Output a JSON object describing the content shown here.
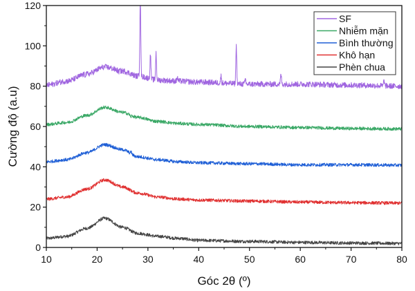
{
  "chart_data": {
    "type": "line",
    "title": "",
    "xlabel": "Góc 2θ (º)",
    "ylabel": "Cường độ (a.u)",
    "xlim": [
      10,
      80
    ],
    "ylim": [
      0,
      120
    ],
    "x_ticks": [
      10,
      20,
      30,
      40,
      50,
      60,
      70,
      80
    ],
    "y_ticks": [
      0,
      20,
      40,
      60,
      80,
      100,
      120
    ],
    "grid": false,
    "legend_position": "top-right",
    "series": [
      {
        "name": "SF",
        "color": "#a066e0",
        "noise": 1.4,
        "baseline": [
          [
            10,
            80.5
          ],
          [
            14,
            82.5
          ],
          [
            18,
            86
          ],
          [
            21.5,
            89.5
          ],
          [
            25,
            87.5
          ],
          [
            28,
            85
          ],
          [
            32,
            83
          ],
          [
            36,
            82.5
          ],
          [
            40,
            82
          ],
          [
            50,
            81
          ],
          [
            60,
            81
          ],
          [
            70,
            80.5
          ],
          [
            80,
            80
          ]
        ],
        "peaks": [
          [
            17.6,
            85.5
          ],
          [
            24.2,
            87
          ],
          [
            28.5,
            125
          ],
          [
            30.5,
            96
          ],
          [
            31.6,
            96.5
          ],
          [
            35.8,
            84.5
          ],
          [
            44.4,
            85
          ],
          [
            47.4,
            100
          ],
          [
            49.2,
            83.5
          ],
          [
            56.2,
            86
          ],
          [
            76.5,
            83
          ]
        ]
      },
      {
        "name": "Nhiễm mặn",
        "color": "#3aa866",
        "noise": 0.8,
        "baseline": [
          [
            10,
            61
          ],
          [
            14,
            62
          ],
          [
            18,
            65.5
          ],
          [
            21.5,
            69.5
          ],
          [
            25,
            67
          ],
          [
            28,
            64.5
          ],
          [
            32,
            62.5
          ],
          [
            36,
            61.5
          ],
          [
            40,
            61
          ],
          [
            50,
            60
          ],
          [
            60,
            59.5
          ],
          [
            70,
            59
          ],
          [
            80,
            58.8
          ]
        ],
        "peaks": [
          [
            26.6,
            64.5
          ]
        ]
      },
      {
        "name": "Bình thường",
        "color": "#1f5fd6",
        "noise": 0.8,
        "baseline": [
          [
            10,
            42.5
          ],
          [
            14,
            43.5
          ],
          [
            18,
            47
          ],
          [
            21.5,
            51
          ],
          [
            25,
            48.5
          ],
          [
            28,
            45
          ],
          [
            32,
            43.5
          ],
          [
            36,
            42.5
          ],
          [
            40,
            42
          ],
          [
            50,
            41.5
          ],
          [
            60,
            41
          ],
          [
            70,
            41
          ],
          [
            80,
            40.8
          ]
        ],
        "peaks": [
          [
            26.7,
            47.5
          ]
        ]
      },
      {
        "name": "Khô hạn",
        "color": "#e03030",
        "noise": 0.8,
        "baseline": [
          [
            10,
            24
          ],
          [
            14,
            25
          ],
          [
            18,
            29
          ],
          [
            21.5,
            33.5
          ],
          [
            25,
            30
          ],
          [
            28,
            27
          ],
          [
            32,
            25
          ],
          [
            36,
            24
          ],
          [
            40,
            23.5
          ],
          [
            50,
            23
          ],
          [
            60,
            22.5
          ],
          [
            70,
            22.2
          ],
          [
            80,
            22
          ]
        ],
        "peaks": []
      },
      {
        "name": "Phèn chua",
        "color": "#444444",
        "noise": 0.8,
        "baseline": [
          [
            10,
            4.5
          ],
          [
            14,
            5.5
          ],
          [
            18,
            9.5
          ],
          [
            21.5,
            14.5
          ],
          [
            25,
            10
          ],
          [
            28,
            7
          ],
          [
            32,
            5.5
          ],
          [
            36,
            4.5
          ],
          [
            40,
            3.5
          ],
          [
            50,
            3
          ],
          [
            60,
            2.5
          ],
          [
            70,
            2.2
          ],
          [
            80,
            2
          ]
        ],
        "peaks": []
      }
    ]
  }
}
